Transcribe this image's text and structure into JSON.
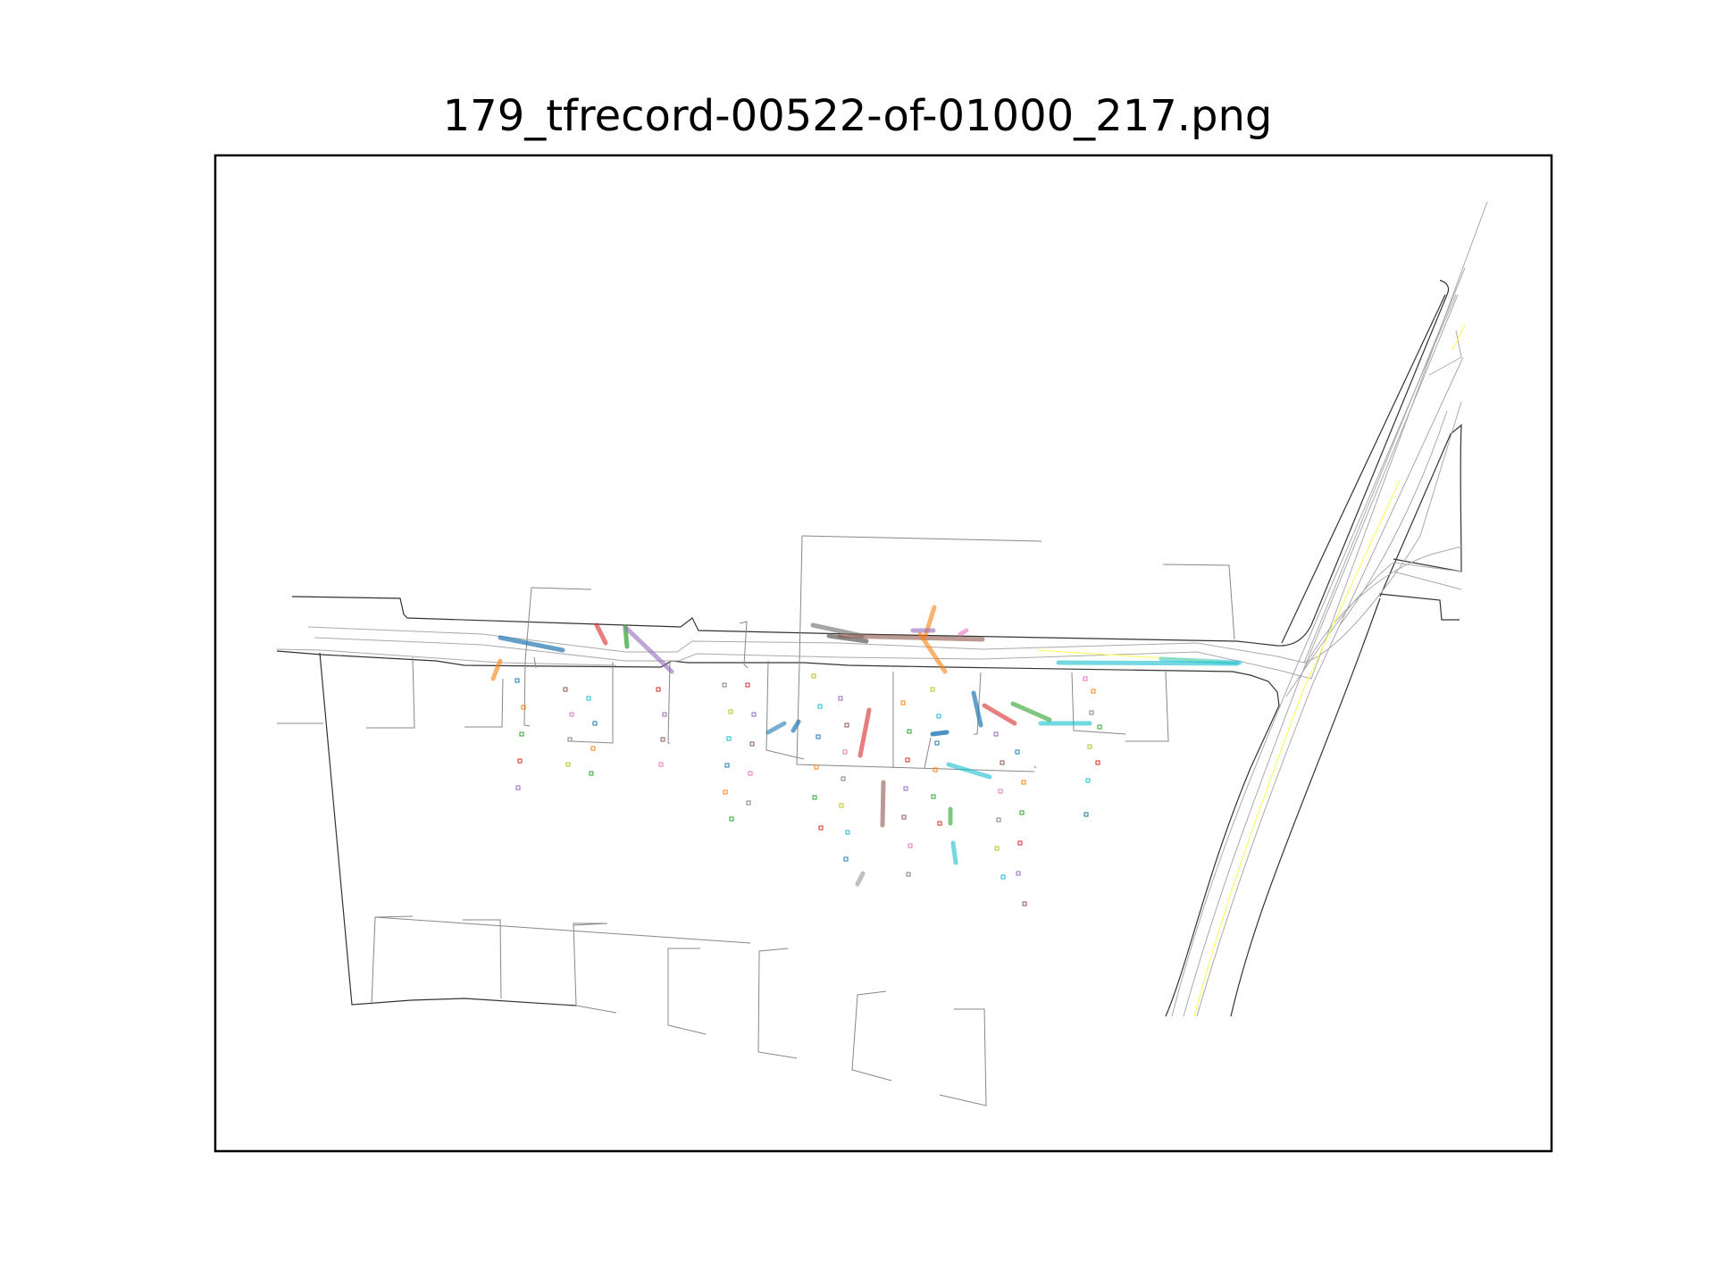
{
  "figure": {
    "title": "179_tfrecord-00522-of-01000_217.png"
  },
  "colors": {
    "background": "#ffffff",
    "frame": "#000000",
    "road_edge": "#333333",
    "lane_line": "#aaaaaa",
    "center_line": "#ffff66",
    "palette": [
      "#1f77b4",
      "#ff7f0e",
      "#2ca02c",
      "#d62728",
      "#9467bd",
      "#8c564b",
      "#e377c2",
      "#7f7f7f",
      "#bcbd22",
      "#17becf"
    ]
  },
  "legend": null
}
